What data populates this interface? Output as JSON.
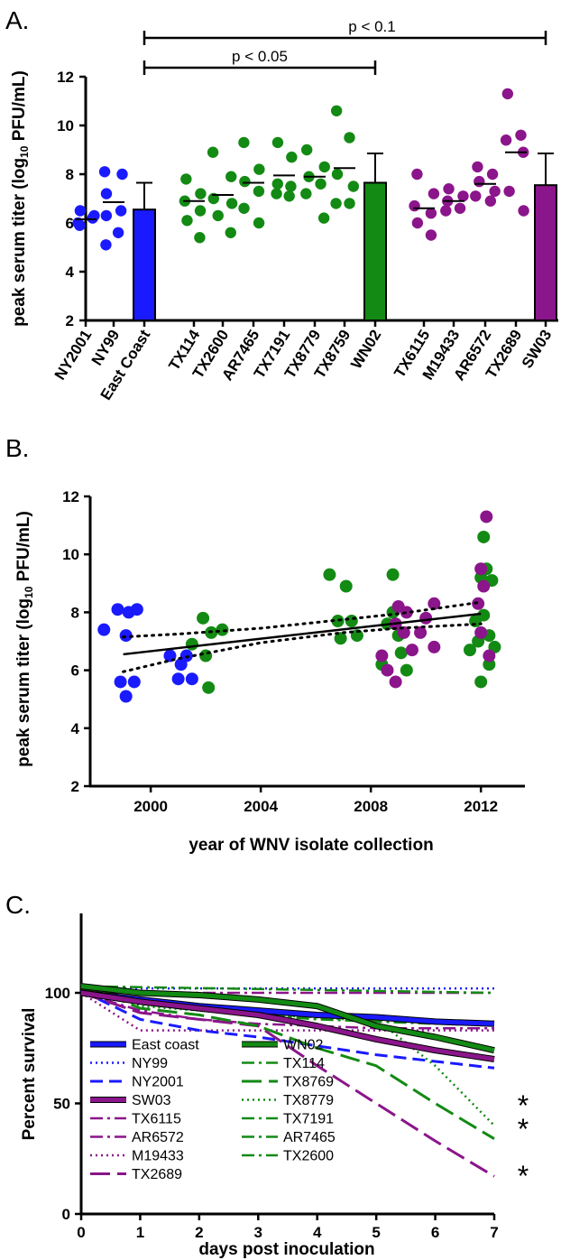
{
  "panels": {
    "a": "A.",
    "b": "B.",
    "c": "C."
  },
  "colors": {
    "blue": "#1a1aff",
    "green": "#138a13",
    "purple": "#8b158b",
    "black": "#000000"
  },
  "chart_data": [
    {
      "type": "bar",
      "panel": "A.",
      "ylabel_main": "peak serum titer (log",
      "ylabel_sub": "10",
      "ylabel_tail": " PFU/mL)",
      "ylim": [
        2,
        12
      ],
      "yticks": [
        "2",
        "4",
        "6",
        "8",
        "10",
        "12"
      ],
      "categories": [
        "NY2001",
        "NY99",
        "East Coast",
        "TX114",
        "TX2600",
        "AR7465",
        "TX7191",
        "TX8779",
        "TX8759",
        "WN02",
        "TX6115",
        "M19433",
        "AR6572",
        "TX2689",
        "SW03"
      ],
      "groups": [
        {
          "color": "blue",
          "strains": [
            {
              "name": "NY2001",
              "points": [
                6.5,
                6.3,
                6.0,
                6.2,
                5.9
              ],
              "mean": 6.15
            },
            {
              "name": "NY99",
              "points": [
                8.1,
                8.0,
                7.2,
                6.5,
                6.3,
                5.6,
                5.1
              ],
              "mean": 6.85
            }
          ],
          "bar": {
            "name": "East Coast",
            "value": 6.55,
            "err": 1.1
          }
        },
        {
          "color": "green",
          "strains": [
            {
              "name": "TX114",
              "points": [
                7.8,
                7.2,
                6.9,
                6.5,
                6.1,
                5.4
              ],
              "mean": 6.9
            },
            {
              "name": "TX2600",
              "points": [
                8.9,
                7.9,
                7.0,
                6.8,
                6.3,
                5.6
              ],
              "mean": 7.15
            },
            {
              "name": "AR7465",
              "points": [
                9.3,
                8.2,
                7.7,
                7.3,
                6.6,
                6.0
              ],
              "mean": 7.65
            },
            {
              "name": "TX7191",
              "points": [
                9.3,
                8.7,
                7.6,
                7.5,
                7.2,
                7.1
              ],
              "mean": 7.95
            },
            {
              "name": "TX8779",
              "points": [
                9.0,
                8.3,
                7.9,
                7.6,
                7.2,
                6.2
              ],
              "mean": 7.9
            },
            {
              "name": "TX8759",
              "points": [
                10.6,
                9.5,
                8.0,
                7.5,
                6.8,
                6.8
              ],
              "mean": 8.25
            }
          ],
          "bar": {
            "name": "WN02",
            "value": 7.65,
            "err": 1.2
          }
        },
        {
          "color": "purple",
          "strains": [
            {
              "name": "TX6115",
              "points": [
                8.0,
                7.2,
                6.7,
                6.4,
                6.0,
                5.5
              ],
              "mean": 6.6
            },
            {
              "name": "M19433",
              "points": [
                7.4,
                7.1,
                6.9,
                6.6,
                6.5
              ],
              "mean": 6.9
            },
            {
              "name": "AR6572",
              "points": [
                8.3,
                8.0,
                7.7,
                7.3,
                7.1,
                6.9
              ],
              "mean": 7.6
            },
            {
              "name": "TX2689",
              "points": [
                11.3,
                9.6,
                9.4,
                8.9,
                7.3,
                6.5
              ],
              "mean": 8.9
            }
          ],
          "bar": {
            "name": "SW03",
            "value": 7.55,
            "err": 1.3
          }
        }
      ],
      "significance": [
        {
          "label": "p < 0.1",
          "from": "East Coast",
          "to": "SW03"
        },
        {
          "label": "p < 0.05",
          "from": "East Coast",
          "to": "WN02"
        }
      ]
    },
    {
      "type": "scatter",
      "panel": "B.",
      "xlabel": "year of WNV isolate collection",
      "ylabel_main": "peak serum titer (log",
      "ylabel_sub": "10",
      "ylabel_tail": " PFU/mL)",
      "xlim": [
        1997.8,
        2013.6
      ],
      "ylim": [
        2,
        12
      ],
      "xticks": [
        2000,
        2004,
        2008,
        2012
      ],
      "yticks": [
        2,
        4,
        6,
        8,
        10,
        12
      ],
      "series": [
        {
          "color": "blue",
          "points": [
            [
              1998.3,
              7.4
            ],
            [
              1998.8,
              8.1
            ],
            [
              1999.2,
              8.0
            ],
            [
              1999.5,
              8.1
            ],
            [
              1999.1,
              7.2
            ],
            [
              1998.9,
              5.6
            ],
            [
              1999.4,
              5.6
            ],
            [
              1999.1,
              5.1
            ],
            [
              2000.7,
              6.5
            ],
            [
              2001.1,
              6.2
            ],
            [
              2001.3,
              6.5
            ],
            [
              2001.0,
              5.7
            ],
            [
              2001.5,
              5.7
            ]
          ]
        },
        {
          "color": "green",
          "points": [
            [
              2001.5,
              6.9
            ],
            [
              2001.9,
              7.8
            ],
            [
              2002.0,
              6.5
            ],
            [
              2002.2,
              7.3
            ],
            [
              2002.6,
              7.4
            ],
            [
              2002.1,
              5.4
            ],
            [
              2006.5,
              9.3
            ],
            [
              2006.8,
              7.7
            ],
            [
              2007.1,
              8.9
            ],
            [
              2007.3,
              7.7
            ],
            [
              2006.9,
              7.1
            ],
            [
              2007.5,
              7.2
            ],
            [
              2008.8,
              9.3
            ],
            [
              2008.6,
              7.6
            ],
            [
              2009.0,
              7.2
            ],
            [
              2009.1,
              6.6
            ],
            [
              2008.4,
              6.2
            ],
            [
              2009.3,
              6.0
            ],
            [
              2008.8,
              8.0
            ],
            [
              2011.6,
              6.7
            ],
            [
              2011.8,
              7.7
            ],
            [
              2012.0,
              9.2
            ],
            [
              2012.1,
              10.6
            ],
            [
              2012.2,
              9.5
            ],
            [
              2012.4,
              9.1
            ],
            [
              2012.1,
              7.9
            ],
            [
              2012.3,
              7.2
            ],
            [
              2011.9,
              7.0
            ],
            [
              2012.5,
              6.8
            ],
            [
              2012.0,
              5.6
            ],
            [
              2012.3,
              6.2
            ]
          ]
        },
        {
          "color": "purple",
          "points": [
            [
              2008.4,
              6.5
            ],
            [
              2008.6,
              6.0
            ],
            [
              2008.9,
              7.6
            ],
            [
              2009.0,
              8.2
            ],
            [
              2009.2,
              7.3
            ],
            [
              2008.9,
              5.6
            ],
            [
              2009.5,
              6.7
            ],
            [
              2009.3,
              8.0
            ],
            [
              2009.8,
              7.3
            ],
            [
              2010.3,
              8.3
            ],
            [
              2010.0,
              7.8
            ],
            [
              2010.3,
              6.8
            ],
            [
              2011.9,
              8.3
            ],
            [
              2012.1,
              8.9
            ],
            [
              2012.0,
              9.5
            ],
            [
              2012.2,
              11.3
            ],
            [
              2012.0,
              7.3
            ],
            [
              2012.3,
              6.5
            ]
          ]
        }
      ],
      "fit": {
        "x": [
          1999,
          2012
        ],
        "y": [
          6.55,
          7.95
        ]
      },
      "ci_upper": {
        "x": [
          1999,
          2001,
          2004,
          2007,
          2009,
          2012
        ],
        "y": [
          7.15,
          7.25,
          7.45,
          7.75,
          7.95,
          8.35
        ]
      },
      "ci_lower": {
        "x": [
          1999,
          2001,
          2004,
          2007,
          2009,
          2012
        ],
        "y": [
          5.95,
          6.4,
          6.95,
          7.3,
          7.45,
          7.6
        ]
      }
    },
    {
      "type": "line",
      "panel": "C.",
      "xlabel": "days post inoculation",
      "ylabel": "Percent survival",
      "xlim": [
        0,
        7
      ],
      "ylim": [
        0,
        110
      ],
      "xticks": [
        0,
        1,
        2,
        3,
        4,
        5,
        6,
        7
      ],
      "yticks": [
        0,
        50,
        100
      ],
      "series": [
        {
          "name": "East coast",
          "color": "blue",
          "style": "solid",
          "width": 5,
          "x": [
            0,
            1,
            2,
            3,
            4,
            5,
            6,
            7
          ],
          "y": [
            100,
            97,
            94,
            92,
            90,
            89,
            87,
            86
          ]
        },
        {
          "name": "NY99",
          "color": "blue",
          "style": "dotted",
          "width": 2.5,
          "x": [
            0,
            7
          ],
          "y": [
            102,
            102
          ]
        },
        {
          "name": "NY2001",
          "color": "blue",
          "style": "dashed",
          "width": 3,
          "x": [
            0,
            1,
            2,
            3,
            4,
            5,
            6,
            7
          ],
          "y": [
            101,
            88,
            83,
            80,
            76,
            72,
            69,
            66
          ]
        },
        {
          "name": "SW03",
          "color": "purple",
          "style": "solid",
          "width": 5,
          "x": [
            0,
            1,
            2,
            3,
            4,
            5,
            6,
            7
          ],
          "y": [
            100,
            96,
            93,
            90,
            85,
            79,
            74,
            70
          ]
        },
        {
          "name": "TX6115",
          "color": "purple",
          "style": "dashdot",
          "width": 2.5,
          "x": [
            0,
            1,
            2,
            3,
            4,
            5,
            6,
            7
          ],
          "y": [
            100,
            92,
            88,
            86,
            85,
            84,
            84,
            84
          ]
        },
        {
          "name": "AR6572",
          "color": "purple",
          "style": "dashdot",
          "width": 2.5,
          "x": [
            0,
            7
          ],
          "y": [
            100,
            100
          ]
        },
        {
          "name": "M19433",
          "color": "purple",
          "style": "dotted",
          "width": 2.5,
          "x": [
            0,
            1,
            2,
            3,
            4,
            5,
            6,
            7
          ],
          "y": [
            100,
            83,
            83,
            83,
            83,
            83,
            83,
            83
          ]
        },
        {
          "name": "TX2689",
          "color": "purple",
          "style": "longdash",
          "width": 3,
          "x": [
            0,
            1,
            2,
            3,
            4,
            5,
            6,
            7
          ],
          "y": [
            100,
            91,
            88,
            85,
            67,
            50,
            33,
            17
          ]
        },
        {
          "name": "WN02",
          "color": "green",
          "style": "solid",
          "width": 5,
          "x": [
            0,
            1,
            2,
            3,
            4,
            5,
            6,
            7
          ],
          "y": [
            103,
            100,
            99,
            97,
            94,
            85,
            80,
            74
          ]
        },
        {
          "name": "TX114",
          "color": "green",
          "style": "dashdot",
          "width": 2.5,
          "x": [
            0,
            7
          ],
          "y": [
            103,
            100
          ]
        },
        {
          "name": "TX8769",
          "color": "green",
          "style": "longdash",
          "width": 3,
          "x": [
            0,
            1,
            2,
            3,
            4,
            5,
            6,
            7
          ],
          "y": [
            104,
            93,
            90,
            85,
            75,
            67,
            50,
            34
          ]
        },
        {
          "name": "TX8779",
          "color": "green",
          "style": "dotted",
          "width": 2.5,
          "x": [
            0,
            1,
            2,
            3,
            4,
            4.5,
            5,
            6,
            7
          ],
          "y": [
            104,
            94,
            92,
            90,
            89,
            88,
            88,
            67,
            40
          ]
        },
        {
          "name": "TX7191",
          "color": "green",
          "style": "dashdot",
          "width": 2.5,
          "x": [
            0,
            1,
            2,
            3,
            4,
            5,
            6,
            7
          ],
          "y": [
            103,
            96,
            93,
            91,
            89,
            88,
            87,
            87
          ]
        },
        {
          "name": "AR7465",
          "color": "green",
          "style": "dashdot",
          "width": 2.5,
          "x": [
            0,
            1,
            2,
            3,
            4,
            5,
            6,
            7
          ],
          "y": [
            104,
            95,
            92,
            90,
            88,
            87,
            86,
            86
          ]
        },
        {
          "name": "TX2600",
          "color": "green",
          "style": "dashdot",
          "width": 2.5,
          "x": [
            0,
            1,
            2,
            3,
            4,
            5,
            6,
            7
          ],
          "y": [
            102,
            97,
            94,
            91,
            89,
            88,
            87,
            86
          ]
        }
      ],
      "legend_left": [
        "East coast",
        "NY99",
        "NY2001",
        "SW03",
        "TX6115",
        "AR6572",
        "M19433",
        "TX2689"
      ],
      "legend_right": [
        "WN02",
        "TX114",
        "TX8769",
        "TX8779",
        "TX7191",
        "AR7465",
        "TX2600"
      ],
      "annotations": [
        {
          "text": "*",
          "y": 40
        },
        {
          "text": "*",
          "y": 30
        },
        {
          "text": "*",
          "y": 15
        }
      ]
    }
  ]
}
